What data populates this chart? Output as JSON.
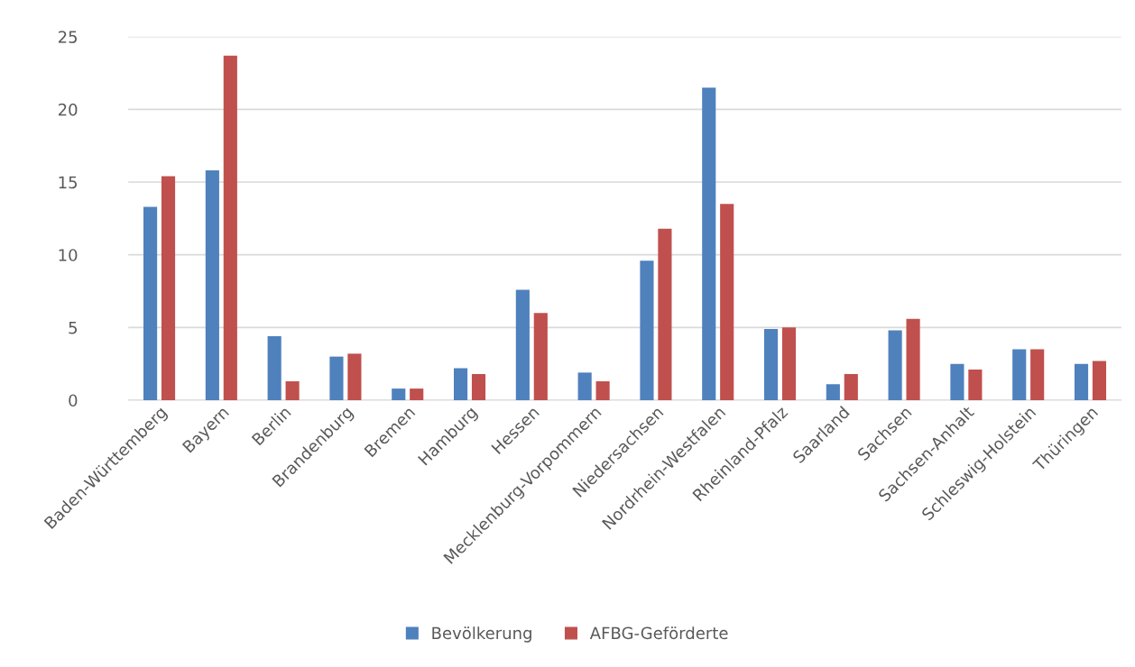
{
  "chart_data": {
    "type": "bar",
    "categories": [
      "Baden-Württemberg",
      "Bayern",
      "Berlin",
      "Brandenburg",
      "Bremen",
      "Hamburg",
      "Hessen",
      "Mecklenburg-Vorpommern",
      "Niedersachsen",
      "Nordrhein-Westfalen",
      "Rheinland-Pfalz",
      "Saarland",
      "Sachsen",
      "Sachsen-Anhalt",
      "Schleswig-Holstein",
      "Thüringen"
    ],
    "series": [
      {
        "name": "Bevölkerung",
        "color": "#4f81bd",
        "values": [
          13.3,
          15.8,
          4.4,
          3.0,
          0.8,
          2.2,
          7.6,
          1.9,
          9.6,
          21.5,
          4.9,
          1.1,
          4.8,
          2.5,
          3.5,
          2.5
        ]
      },
      {
        "name": "AFBG-Geförderte",
        "color": "#c0504d",
        "values": [
          15.4,
          23.7,
          1.3,
          3.2,
          0.8,
          1.8,
          6.0,
          1.3,
          11.8,
          13.5,
          5.0,
          1.8,
          5.6,
          2.1,
          3.5,
          2.7
        ]
      }
    ],
    "ylim": [
      0,
      25
    ],
    "yticks": [
      0,
      5,
      10,
      15,
      20,
      25
    ],
    "grid": "y",
    "legend": "bottom"
  }
}
